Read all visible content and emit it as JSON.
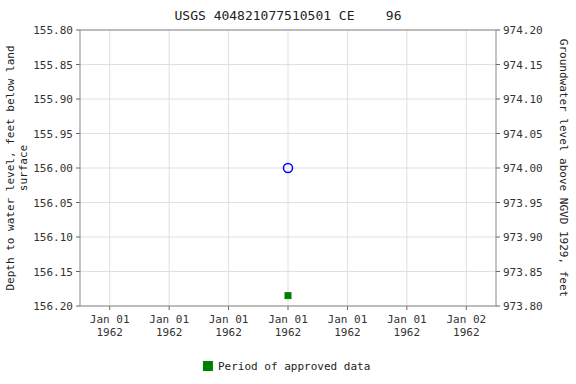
{
  "chart_data": {
    "type": "scatter",
    "title": "USGS 404821077510501 CE    96",
    "y_label": "Depth to water level, feet below land\nsurface",
    "y2_label": "Groundwater level above NGVD 1929, feet",
    "categories": [
      "Jan 01\n1962",
      "Jan 01\n1962",
      "Jan 01\n1962",
      "Jan 01\n1962",
      "Jan 01\n1962",
      "Jan 01\n1962",
      "Jan 02\n1962"
    ],
    "series": [
      {
        "color": "blue",
        "marker": "open-circle",
        "values": [
          null,
          null,
          null,
          156.0,
          null,
          null,
          null
        ]
      },
      {
        "name": "Period of approved data",
        "color": "green",
        "marker": "square",
        "values": [
          null,
          null,
          null,
          156.185,
          null,
          null,
          null
        ]
      }
    ],
    "ylim": [
      156.2,
      155.8
    ],
    "yticks": [
      {
        "value": 155.8,
        "label": "155.80"
      },
      155.85,
      {
        "value": 155.9,
        "label": "155.90"
      },
      155.95,
      {
        "value": 156.0,
        "label": "156.00"
      },
      156.05,
      {
        "value": 156.1,
        "label": "156.10"
      },
      156.15,
      {
        "value": 156.2,
        "label": "156.20"
      }
    ],
    "y2lim": [
      973.8,
      974.2
    ],
    "y2ticks": [
      {
        "value": 973.8,
        "label": "973.80"
      },
      973.85,
      {
        "value": 973.9,
        "label": "973.90"
      },
      973.95,
      {
        "value": 974.0,
        "label": "974.00"
      },
      974.05,
      {
        "value": 974.1,
        "label": "974.10"
      },
      974.15,
      {
        "value": 974.2,
        "label": "974.20"
      }
    ],
    "grid": true,
    "legend": "bottom"
  }
}
